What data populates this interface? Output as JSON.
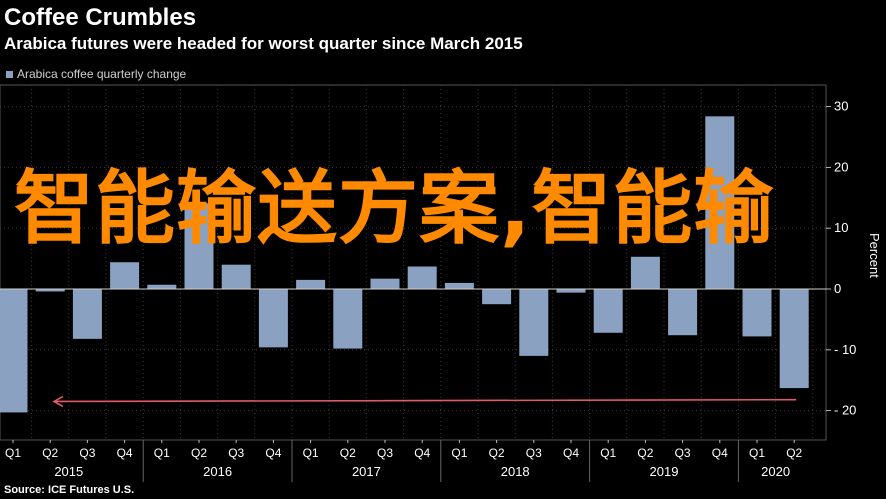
{
  "header": {
    "title": "Coffee Crumbles",
    "subtitle": "Arabica futures were headed for worst quarter since March 2015"
  },
  "legend": {
    "label": "Arabica coffee quarterly change",
    "color": "#8aa1c1"
  },
  "axis": {
    "right_label": "Percent"
  },
  "source": "Source: ICE Futures U.S.",
  "watermark": "智能输送方案,智能输",
  "chart_data": {
    "type": "bar",
    "ylabel": "Percent",
    "ylim": [
      -25,
      33
    ],
    "yticks": [
      30,
      20,
      10,
      0,
      -10,
      -20
    ],
    "ytick_labels": [
      "30",
      "20",
      "10",
      "0",
      "- 10",
      "- 20"
    ],
    "grid": true,
    "legend_position": "top-left",
    "categories": [
      "Q1 2015",
      "Q2 2015",
      "Q3 2015",
      "Q4 2015",
      "Q1 2016",
      "Q2 2016",
      "Q3 2016",
      "Q4 2016",
      "Q1 2017",
      "Q2 2017",
      "Q3 2017",
      "Q4 2017",
      "Q1 2018",
      "Q2 2018",
      "Q3 2018",
      "Q4 2018",
      "Q1 2019",
      "Q2 2019",
      "Q3 2019",
      "Q4 2019",
      "Q1 2020",
      "Q2 2020"
    ],
    "quarter_labels": [
      "Q1",
      "Q2",
      "Q3",
      "Q4",
      "Q1",
      "Q2",
      "Q3",
      "Q4",
      "Q1",
      "Q2",
      "Q3",
      "Q4",
      "Q1",
      "Q2",
      "Q3",
      "Q4",
      "Q1",
      "Q2",
      "Q3",
      "Q4",
      "Q1",
      "Q2"
    ],
    "years": [
      "2015",
      "2016",
      "2017",
      "2018",
      "2019",
      "2020"
    ],
    "series": [
      {
        "name": "Arabica coffee quarterly change",
        "color": "#8aa1c1",
        "values": [
          -20.3,
          -0.4,
          -8.2,
          4.4,
          0.7,
          14.1,
          4.0,
          -9.6,
          1.5,
          -9.8,
          1.7,
          3.7,
          1.0,
          -2.5,
          -11.0,
          -0.6,
          -7.2,
          5.3,
          -7.6,
          28.4,
          -7.8,
          -16.3
        ]
      }
    ],
    "annotation": {
      "type": "arrow",
      "color": "#e05a6a",
      "from_value": -18.5,
      "to_value": -18.2
    }
  }
}
